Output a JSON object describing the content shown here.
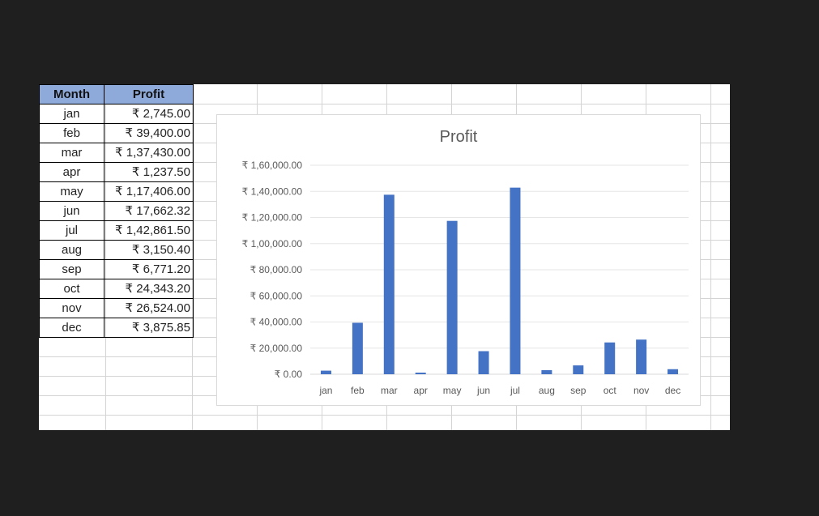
{
  "table": {
    "headers": [
      "Month",
      "Profit"
    ],
    "rows": [
      {
        "month": "jan",
        "profit": "₹ 2,745.00"
      },
      {
        "month": "feb",
        "profit": "₹ 39,400.00"
      },
      {
        "month": "mar",
        "profit": "₹ 1,37,430.00"
      },
      {
        "month": "apr",
        "profit": "₹ 1,237.50"
      },
      {
        "month": "may",
        "profit": "₹ 1,17,406.00"
      },
      {
        "month": "jun",
        "profit": "₹ 17,662.32"
      },
      {
        "month": "jul",
        "profit": "₹ 1,42,861.50"
      },
      {
        "month": "aug",
        "profit": "₹ 3,150.40"
      },
      {
        "month": "sep",
        "profit": "₹ 6,771.20"
      },
      {
        "month": "oct",
        "profit": "₹ 24,343.20"
      },
      {
        "month": "nov",
        "profit": "₹ 26,524.00"
      },
      {
        "month": "dec",
        "profit": "₹ 3,875.85"
      }
    ]
  },
  "chart_data": {
    "type": "bar",
    "title": "Profit",
    "categories": [
      "jan",
      "feb",
      "mar",
      "apr",
      "may",
      "jun",
      "jul",
      "aug",
      "sep",
      "oct",
      "nov",
      "dec"
    ],
    "values": [
      2745,
      39400,
      137430,
      1237.5,
      117406,
      17662.32,
      142861.5,
      3150.4,
      6771.2,
      24343.2,
      26524,
      3875.85
    ],
    "ylim": [
      0,
      160000
    ],
    "y_ticks": [
      0,
      20000,
      40000,
      60000,
      80000,
      100000,
      120000,
      140000,
      160000
    ],
    "y_tick_labels": [
      "₹ 0.00",
      "₹ 20,000.00",
      "₹ 40,000.00",
      "₹ 60,000.00",
      "₹ 80,000.00",
      "₹ 1,00,000.00",
      "₹ 1,20,000.00",
      "₹ 1,40,000.00",
      "₹ 1,60,000.00"
    ],
    "xlabel": "",
    "ylabel": "",
    "grid": true,
    "bar_color": "#4472c4"
  }
}
